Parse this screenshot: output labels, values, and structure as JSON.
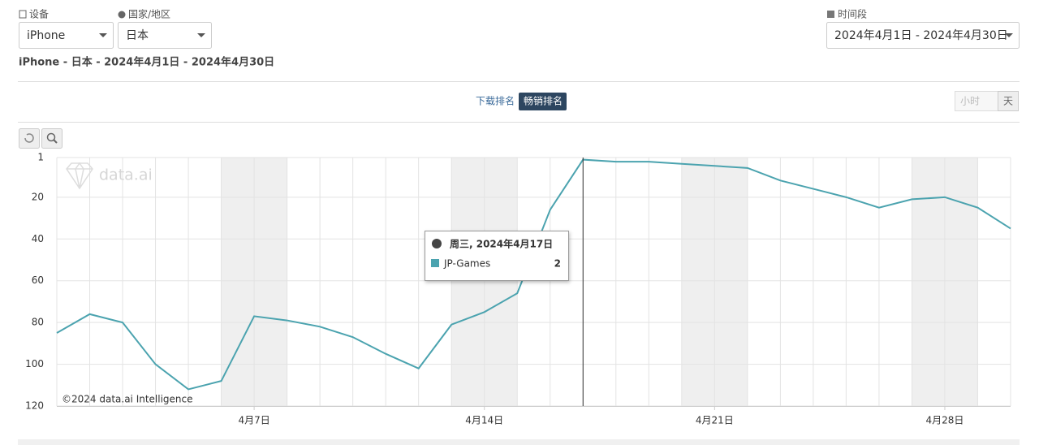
{
  "filters": {
    "device_label": "设备",
    "device": "iPhone",
    "region_label": "国家/地区",
    "region": "日本",
    "period_label": "时间段",
    "period": "2024年4月1日 - 2024年4月30日"
  },
  "subtitle": "iPhone - 日本 - 2024年4月1日 - 2024年4月30日",
  "tabs": [
    "下载排名",
    "畅销排名"
  ],
  "granularity": [
    "小时",
    "天"
  ],
  "chart_data": {
    "type": "line",
    "categories": [
      null,
      null,
      null,
      null,
      null,
      null,
      "4月7日",
      null,
      null,
      null,
      null,
      null,
      null,
      "4月14日",
      null,
      null,
      null,
      null,
      null,
      null,
      "4月21日",
      null,
      null,
      null,
      null,
      null,
      null,
      "4月28日",
      null,
      null
    ],
    "series": [
      {
        "name": "JP-Games",
        "color": "#4ba3af",
        "values": [
          85,
          76,
          80,
          100,
          112,
          108,
          77,
          79,
          82,
          87,
          95,
          102,
          81,
          75,
          66,
          26,
          2,
          3,
          3,
          4,
          5,
          6,
          12,
          16,
          20,
          25,
          21,
          20,
          25,
          35
        ]
      }
    ],
    "ylim": [
      120,
      1
    ],
    "yticks": [
      1,
      20,
      40,
      60,
      80,
      100,
      120
    ],
    "grid": true,
    "watermark": "data.ai",
    "credit": "©2024 data.ai Intelligence",
    "tooltip": {
      "title": "周三, 2024年4月17日"
    }
  }
}
